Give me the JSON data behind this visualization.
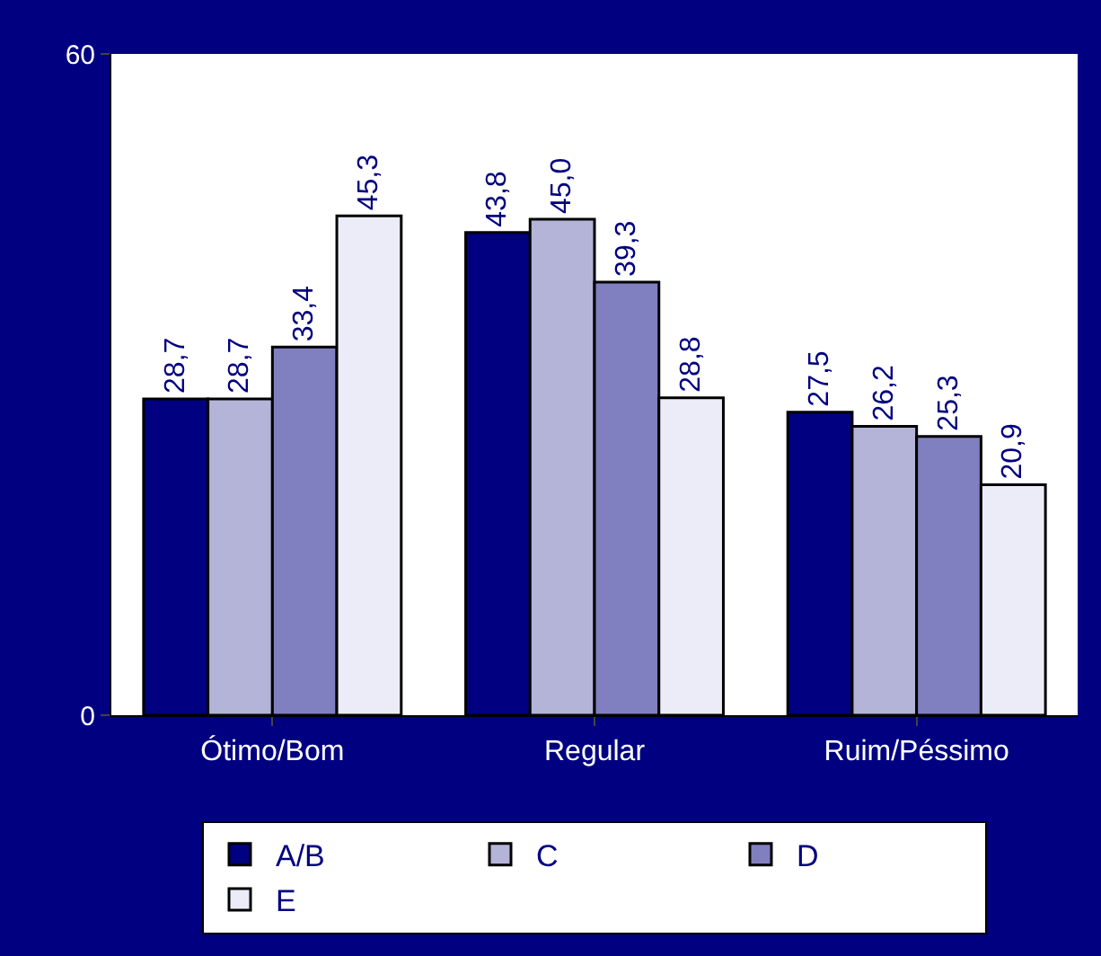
{
  "chart_data": {
    "type": "bar",
    "categories": [
      "Ótimo/Bom",
      "Regular",
      "Ruim/Péssimo"
    ],
    "series": [
      {
        "name": "A/B",
        "color": "#000080",
        "values": [
          28.7,
          43.8,
          27.5
        ],
        "value_labels": [
          "28,7",
          "43,8",
          "27,5"
        ]
      },
      {
        "name": "C",
        "color": "#b4b4d8",
        "values": [
          28.7,
          45.0,
          26.2
        ],
        "value_labels": [
          "28,7",
          "45,0",
          "26,2"
        ]
      },
      {
        "name": "D",
        "color": "#8080c0",
        "values": [
          33.4,
          39.3,
          25.3
        ],
        "value_labels": [
          "33,4",
          "39,3",
          "25,3"
        ]
      },
      {
        "name": "E",
        "color": "#ececf8",
        "values": [
          45.3,
          28.8,
          20.9
        ],
        "value_labels": [
          "45,3",
          "28,8",
          "20,9"
        ]
      }
    ],
    "ylim": [
      0,
      60
    ],
    "yticks": [
      0,
      60
    ],
    "legend": "bottom"
  }
}
